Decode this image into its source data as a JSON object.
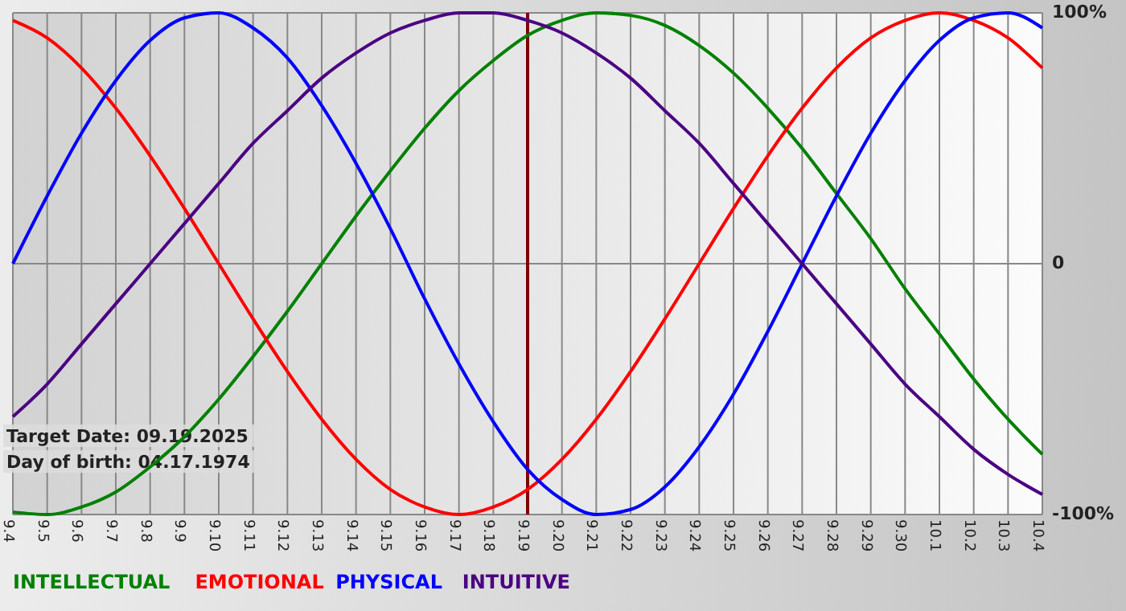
{
  "chart_data": {
    "type": "line",
    "categories": [
      "9.4",
      "9.5",
      "9.6",
      "9.7",
      "9.8",
      "9.9",
      "9.10",
      "9.11",
      "9.12",
      "9.13",
      "9.14",
      "9.15",
      "9.16",
      "9.17",
      "9.18",
      "9.19",
      "9.20",
      "9.21",
      "9.22",
      "9.23",
      "9.24",
      "9.25",
      "9.26",
      "9.27",
      "9.28",
      "9.29",
      "9.30",
      "10.1",
      "10.2",
      "10.3",
      "10.4"
    ],
    "series": [
      {
        "name": "INTELLECTUAL",
        "color": "#008000",
        "values": [
          -99,
          -100,
          -97,
          -91,
          -81,
          -69,
          -54,
          -37,
          -19,
          0,
          19,
          37,
          54,
          69,
          81,
          91,
          97,
          100,
          99,
          95,
          87,
          76,
          62,
          46,
          28,
          10,
          -10,
          -28,
          -46,
          -62,
          -76
        ]
      },
      {
        "name": "EMOTIONAL",
        "color": "#ff0000",
        "values": [
          97,
          90,
          78,
          62,
          43,
          22,
          0,
          -22,
          -43,
          -62,
          -78,
          -90,
          -97,
          -100,
          -97,
          -90,
          -78,
          -62,
          -43,
          -22,
          0,
          22,
          43,
          62,
          78,
          90,
          97,
          100,
          97,
          90,
          78
        ]
      },
      {
        "name": "PHYSICAL",
        "color": "#0000ff",
        "values": [
          0,
          27,
          52,
          73,
          89,
          98,
          100,
          94,
          82,
          63,
          40,
          14,
          -14,
          -40,
          -63,
          -82,
          -94,
          -100,
          -98,
          -89,
          -73,
          -52,
          -27,
          0,
          27,
          52,
          73,
          89,
          98,
          100,
          94
        ]
      },
      {
        "name": "INTUITIVE",
        "color": "#4b0082",
        "values": [
          -61,
          -48,
          -32,
          -16,
          0,
          16,
          32,
          48,
          61,
          74,
          84,
          92,
          97,
          100,
          100,
          97,
          92,
          84,
          74,
          61,
          48,
          32,
          16,
          0,
          -16,
          -32,
          -48,
          -61,
          -74,
          -84,
          -92
        ]
      }
    ],
    "ylim": [
      -100,
      100
    ],
    "yticks": [
      {
        "value": 100,
        "label": "100%"
      },
      0,
      {
        "value": -100,
        "label": "-100%"
      }
    ],
    "ref_lines": [
      {
        "axis": "x",
        "value": "9.19",
        "color": "#800000"
      }
    ],
    "annotations": [
      "Target Date: 09.19.2025",
      "Day of birth: 04.17.1974"
    ],
    "grid": true,
    "legend": "bottom",
    "marker": "none",
    "line_style": "solid"
  }
}
